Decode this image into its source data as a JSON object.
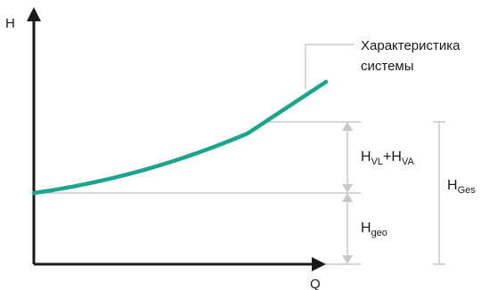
{
  "axes": {
    "y_label": "H",
    "x_label": "Q"
  },
  "curve": {
    "label_line1": "Характеристика",
    "label_line2": "системы",
    "color": "#1aa58c"
  },
  "dimensions": {
    "dynamic_main": "H",
    "dynamic_sub1": "VL",
    "dynamic_plus": "+H",
    "dynamic_sub2": "VA",
    "static_main": "H",
    "static_sub": "geo",
    "total_main": "H",
    "total_sub": "Ges"
  },
  "colors": {
    "axis": "#1a1a1a",
    "guide": "#c8c8c8",
    "curve": "#1aa58c"
  }
}
